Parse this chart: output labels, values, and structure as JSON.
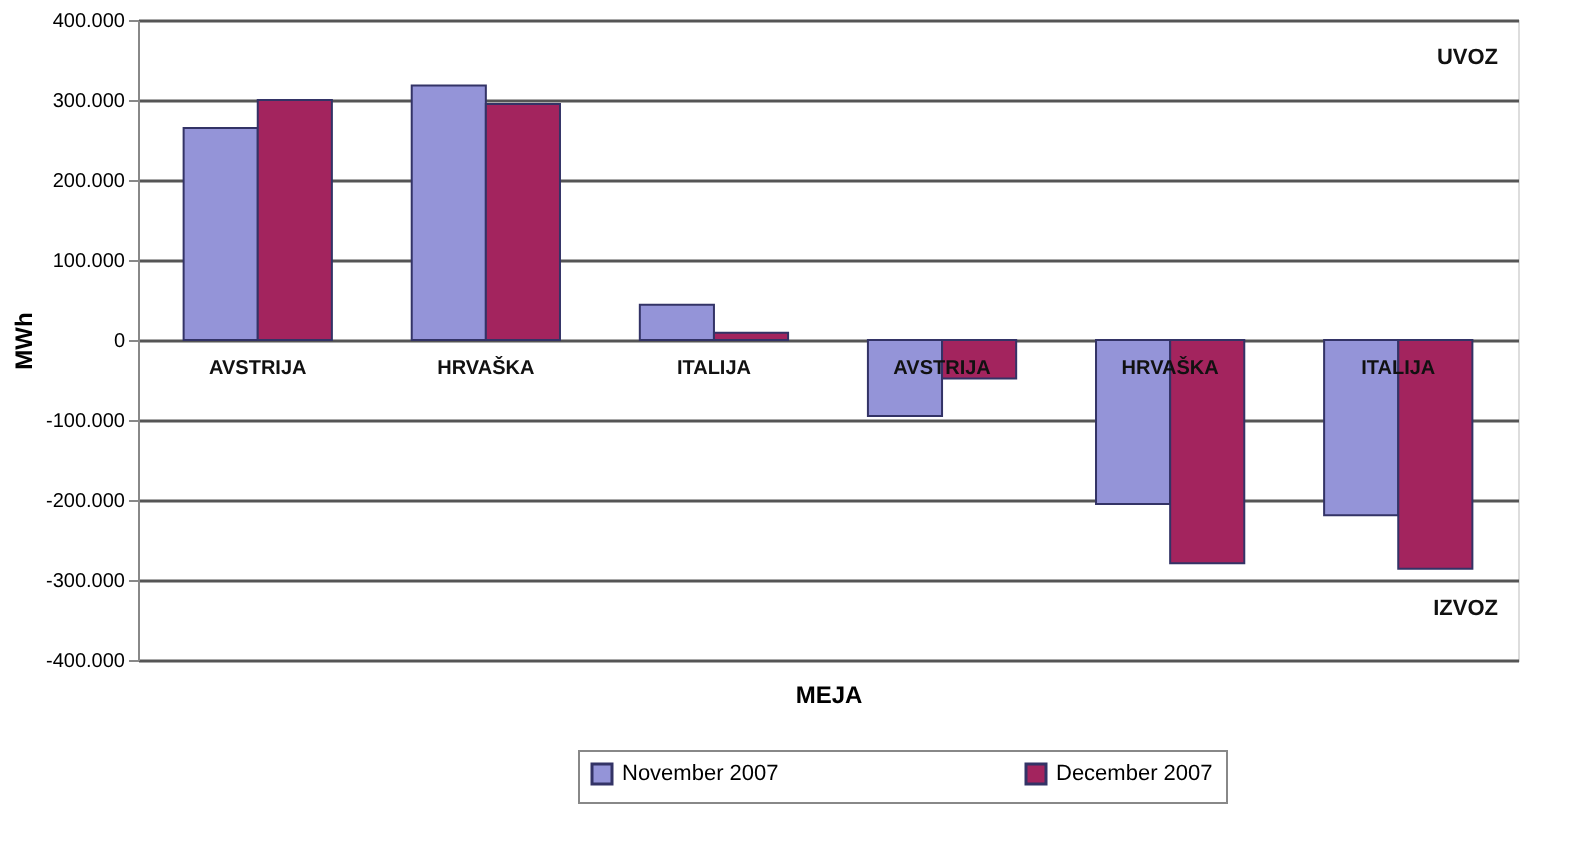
{
  "chart_data": {
    "type": "bar",
    "ylabel": "MWh",
    "xlabel": "MEJA",
    "categories": [
      "AVSTRIJA",
      "HRVAŠKA",
      "ITALIJA",
      "AVSTRIJA",
      "HRVAŠKA",
      "ITALIJA"
    ],
    "series": [
      {
        "name": "November 2007",
        "color": "#9494d8",
        "values": [
          265000,
          318000,
          44000,
          -95000,
          -205000,
          -219000
        ]
      },
      {
        "name": "December 2007",
        "color": "#a3245e",
        "values": [
          300000,
          295000,
          9000,
          -48000,
          -279000,
          -286000
        ]
      }
    ],
    "ylim": [
      -400000,
      400000
    ],
    "yticks": [
      {
        "value": -400000,
        "label": "-400.000"
      },
      {
        "value": -300000,
        "label": "-300.000"
      },
      {
        "value": -200000,
        "label": "-200.000"
      },
      {
        "value": -100000,
        "label": "-100.000"
      },
      0,
      {
        "value": 100000,
        "label": "100.000"
      },
      {
        "value": 200000,
        "label": "200.000"
      },
      {
        "value": 300000,
        "label": "300.000"
      },
      {
        "value": 400000,
        "label": "400.000"
      }
    ],
    "annotations": [
      "UVOZ",
      "IZVOZ"
    ],
    "grid": "y",
    "legend": "bottom"
  }
}
